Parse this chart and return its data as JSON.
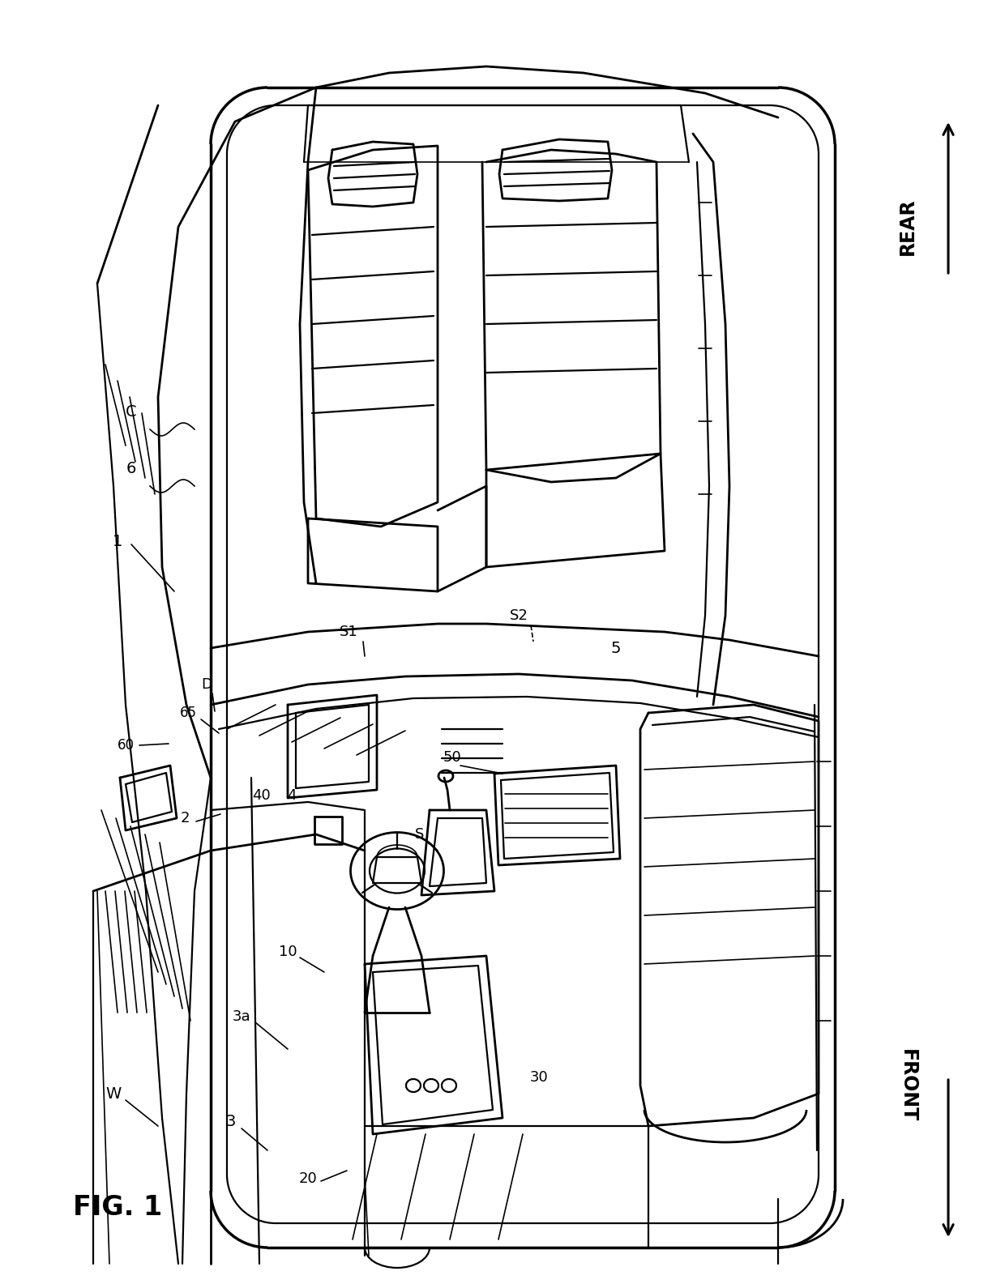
{
  "bg_color": "#ffffff",
  "line_color": "#000000",
  "lw_outer": 2.5,
  "lw_main": 2.0,
  "lw_detail": 1.5,
  "lw_thin": 1.2,
  "labels": {
    "fig": "FIG. 1",
    "rear": "REAR",
    "front": "FRONT",
    "C": "C",
    "1": "1",
    "2": "2",
    "3": "3",
    "3a": "3a",
    "4": "4",
    "5": "5",
    "6": "6",
    "10": "10",
    "20": "20",
    "30": "30",
    "40": "40",
    "50": "50",
    "60": "60",
    "65": "65",
    "D": "D",
    "S": "S",
    "S1": "S1",
    "S2": "S2",
    "W": "W"
  }
}
